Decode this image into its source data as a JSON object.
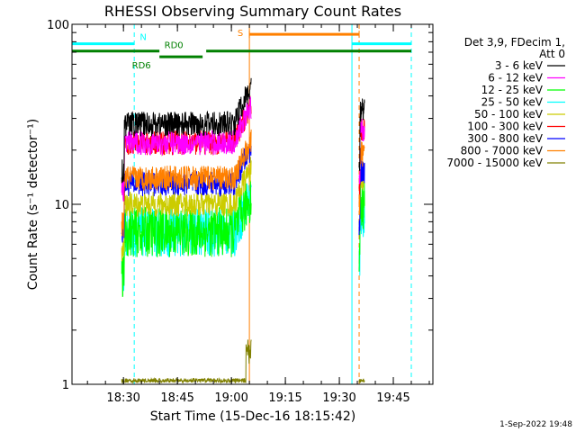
{
  "chart_data": {
    "type": "line",
    "title": "RHESSI Observing Summary Count Rates",
    "xlabel": "Start Time (15-Dec-16 18:15:42)",
    "ylabel": "Count Rate (s⁻¹ detector⁻¹)",
    "yscale": "log",
    "ylim": [
      1,
      100
    ],
    "xlim": [
      "18:15:42",
      "19:56:00"
    ],
    "x_ticks": [
      "18:30",
      "18:45",
      "19:00",
      "19:15",
      "19:30",
      "19:45"
    ],
    "y_ticks": [
      "1",
      "10",
      "100"
    ],
    "legend_header": [
      "Det 3,9, FDecim 1,",
      "Att 0"
    ],
    "legend_position": "right",
    "footer_date": "1-Sep-2022 19:48",
    "series": [
      {
        "name": "3 - 6 keV",
        "color": "#000000",
        "level_first": 28,
        "level_second": 33
      },
      {
        "name": "6 - 12 keV",
        "color": "#ff00ff",
        "level_first": 22,
        "level_second": 26
      },
      {
        "name": "12 - 25 keV",
        "color": "#00ff00",
        "level_first": 7,
        "level_second": 10
      },
      {
        "name": "25 - 50 keV",
        "color": "#00ffff",
        "level_first": 7,
        "level_second": 9
      },
      {
        "name": "50 - 100 keV",
        "color": "#cccc00",
        "level_first": 10,
        "level_second": 14
      },
      {
        "name": "100 - 300 keV",
        "color": "#ff0000",
        "level_first": 22,
        "level_second": 26
      },
      {
        "name": "300 - 800 keV",
        "color": "#0000ff",
        "level_first": 13,
        "level_second": 15
      },
      {
        "name": "800 - 7000 keV",
        "color": "#ff8000",
        "level_first": 14,
        "level_second": 19
      },
      {
        "name": "7000 - 15000 keV",
        "color": "#808000",
        "level_first": 1.2,
        "level_second": 1.1
      }
    ],
    "data_segments": [
      {
        "start": "18:29:30",
        "end": "19:05:30"
      },
      {
        "start": "19:35:30",
        "end": "19:37:00"
      }
    ],
    "flag_bars": [
      {
        "label": "N",
        "color": "#00ffff",
        "y": 78,
        "segments": [
          [
            "18:15:42",
            "18:33:00"
          ],
          [
            "19:33:30",
            "19:50:00"
          ]
        ]
      },
      {
        "label": "S",
        "color": "#ff8000",
        "y": 88,
        "segments": [
          [
            "19:05:00",
            "19:35:30"
          ]
        ]
      },
      {
        "label": "RD0",
        "color": "#008000",
        "y": 71,
        "segments": [
          [
            "18:15:42",
            "18:40:00"
          ],
          [
            "18:53:00",
            "19:50:00"
          ]
        ]
      },
      {
        "label": "RD6",
        "color": "#008000",
        "y": 66,
        "segments": [
          [
            "18:40:00",
            "18:52:00"
          ]
        ]
      }
    ],
    "vlines": [
      {
        "x": "18:15:42",
        "color": "#00ffff",
        "style": "solid"
      },
      {
        "x": "18:33:00",
        "color": "#00ffff",
        "style": "dashed"
      },
      {
        "x": "19:05:00",
        "color": "#ff8000",
        "style": "solid"
      },
      {
        "x": "19:33:30",
        "color": "#00ffff",
        "style": "solid"
      },
      {
        "x": "19:35:30",
        "color": "#ff8000",
        "style": "dashed"
      },
      {
        "x": "19:50:00",
        "color": "#00ffff",
        "style": "dashed"
      }
    ]
  }
}
